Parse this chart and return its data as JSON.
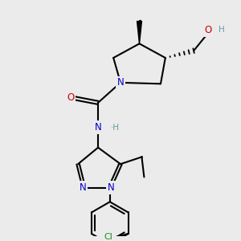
{
  "bg_color": "#ebebeb",
  "atom_colors": {
    "C": "#000000",
    "N": "#0000cc",
    "O": "#cc0000",
    "Cl": "#228B22",
    "H": "#5f9ea0"
  },
  "bond_color": "#000000",
  "bond_lw": 1.5,
  "figsize": [
    3.0,
    3.0
  ],
  "dpi": 100,
  "xlim": [
    0,
    10
  ],
  "ylim": [
    0,
    10
  ]
}
